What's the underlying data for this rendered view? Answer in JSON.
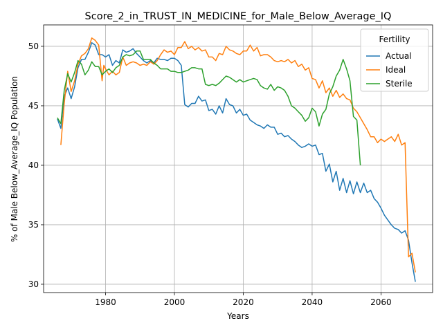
{
  "chart_data": {
    "type": "line",
    "title": "Score_2_in_TRUST_IN_MEDICINE_for_Male_Below_Average_IQ",
    "xlabel": "Years",
    "ylabel": "% of Male Below_Average_IQ Population",
    "xlim": [
      1962,
      2075
    ],
    "ylim": [
      29.3,
      51.8
    ],
    "xticks": [
      1980,
      2000,
      2020,
      2040,
      2060
    ],
    "yticks": [
      30,
      35,
      40,
      45,
      50
    ],
    "grid": true,
    "legend": {
      "title": "Fertility",
      "position": "top-right"
    },
    "series": [
      {
        "name": "Actual",
        "color": "#1f77b4",
        "points": [
          [
            1966,
            43.9
          ],
          [
            1967,
            43.1
          ],
          [
            1968,
            45.8
          ],
          [
            1969,
            46.5
          ],
          [
            1970,
            45.6
          ],
          [
            1971,
            46.6
          ],
          [
            1972,
            48.2
          ],
          [
            1973,
            48.9
          ],
          [
            1974,
            48.9
          ],
          [
            1975,
            49.5
          ],
          [
            1976,
            50.3
          ],
          [
            1977,
            50.1
          ],
          [
            1978,
            49.3
          ],
          [
            1979,
            49.3
          ],
          [
            1980,
            49.1
          ],
          [
            1981,
            49.3
          ],
          [
            1982,
            48.4
          ],
          [
            1983,
            48.8
          ],
          [
            1984,
            48.6
          ],
          [
            1985,
            49.7
          ],
          [
            1986,
            49.5
          ],
          [
            1987,
            49.6
          ],
          [
            1988,
            49.8
          ],
          [
            1989,
            49.4
          ],
          [
            1990,
            49.1
          ],
          [
            1991,
            48.8
          ],
          [
            1992,
            48.6
          ],
          [
            1993,
            48.8
          ],
          [
            1994,
            48.6
          ],
          [
            1995,
            49.0
          ],
          [
            1996,
            48.9
          ],
          [
            1997,
            48.9
          ],
          [
            1998,
            48.8
          ],
          [
            1999,
            49.0
          ],
          [
            2000,
            49.0
          ],
          [
            2001,
            48.8
          ],
          [
            2002,
            48.4
          ],
          [
            2003,
            45.1
          ],
          [
            2004,
            44.9
          ],
          [
            2005,
            45.2
          ],
          [
            2006,
            45.2
          ],
          [
            2007,
            45.8
          ],
          [
            2008,
            45.4
          ],
          [
            2009,
            45.5
          ],
          [
            2010,
            44.6
          ],
          [
            2011,
            44.7
          ],
          [
            2012,
            44.3
          ],
          [
            2013,
            45.0
          ],
          [
            2014,
            44.4
          ],
          [
            2015,
            45.6
          ],
          [
            2016,
            45.1
          ],
          [
            2017,
            45.0
          ],
          [
            2018,
            44.4
          ],
          [
            2019,
            44.7
          ],
          [
            2020,
            44.2
          ],
          [
            2021,
            44.3
          ],
          [
            2022,
            43.8
          ],
          [
            2023,
            43.6
          ],
          [
            2024,
            43.4
          ],
          [
            2025,
            43.3
          ],
          [
            2026,
            43.1
          ],
          [
            2027,
            43.4
          ],
          [
            2028,
            43.2
          ],
          [
            2029,
            43.2
          ],
          [
            2030,
            42.6
          ],
          [
            2031,
            42.7
          ],
          [
            2032,
            42.4
          ],
          [
            2033,
            42.5
          ],
          [
            2034,
            42.2
          ],
          [
            2035,
            42.0
          ],
          [
            2036,
            41.7
          ],
          [
            2037,
            41.5
          ],
          [
            2038,
            41.6
          ],
          [
            2039,
            41.8
          ],
          [
            2040,
            41.6
          ],
          [
            2041,
            41.7
          ],
          [
            2042,
            40.9
          ],
          [
            2043,
            41.0
          ],
          [
            2044,
            39.5
          ],
          [
            2045,
            40.1
          ],
          [
            2046,
            38.6
          ],
          [
            2047,
            39.5
          ],
          [
            2048,
            37.9
          ],
          [
            2049,
            38.9
          ],
          [
            2050,
            37.7
          ],
          [
            2051,
            38.7
          ],
          [
            2052,
            37.6
          ],
          [
            2053,
            38.6
          ],
          [
            2054,
            37.7
          ],
          [
            2055,
            38.5
          ],
          [
            2056,
            37.7
          ],
          [
            2057,
            37.9
          ],
          [
            2058,
            37.2
          ],
          [
            2059,
            36.9
          ],
          [
            2060,
            36.4
          ],
          [
            2061,
            35.8
          ],
          [
            2062,
            35.4
          ],
          [
            2063,
            35.0
          ],
          [
            2064,
            34.7
          ],
          [
            2065,
            34.6
          ],
          [
            2066,
            34.3
          ],
          [
            2067,
            34.5
          ],
          [
            2068,
            33.7
          ],
          [
            2069,
            31.8
          ],
          [
            2070,
            30.2
          ]
        ]
      },
      {
        "name": "Ideal",
        "color": "#ff7f0e",
        "points": [
          [
            1967,
            41.7
          ],
          [
            1968,
            45.2
          ],
          [
            1969,
            47.9
          ],
          [
            1970,
            46.2
          ],
          [
            1971,
            47.1
          ],
          [
            1972,
            48.5
          ],
          [
            1973,
            49.2
          ],
          [
            1974,
            49.4
          ],
          [
            1975,
            49.8
          ],
          [
            1976,
            50.7
          ],
          [
            1977,
            50.5
          ],
          [
            1978,
            50.1
          ],
          [
            1979,
            47.1
          ],
          [
            1979.5,
            48.4
          ],
          [
            1980,
            48.1
          ],
          [
            1981,
            47.6
          ],
          [
            1982,
            47.9
          ],
          [
            1983,
            47.6
          ],
          [
            1984,
            47.8
          ],
          [
            1985,
            49.1
          ],
          [
            1986,
            48.4
          ],
          [
            1987,
            48.6
          ],
          [
            1988,
            48.7
          ],
          [
            1989,
            48.6
          ],
          [
            1990,
            48.4
          ],
          [
            1991,
            48.5
          ],
          [
            1992,
            48.4
          ],
          [
            1993,
            48.7
          ],
          [
            1994,
            48.5
          ],
          [
            1995,
            48.8
          ],
          [
            1996,
            49.3
          ],
          [
            1997,
            49.7
          ],
          [
            1998,
            49.5
          ],
          [
            1999,
            49.6
          ],
          [
            2000,
            49.3
          ],
          [
            2001,
            49.9
          ],
          [
            2002,
            49.9
          ],
          [
            2003,
            50.4
          ],
          [
            2004,
            49.8
          ],
          [
            2005,
            50.0
          ],
          [
            2006,
            49.7
          ],
          [
            2007,
            49.9
          ],
          [
            2008,
            49.6
          ],
          [
            2009,
            49.7
          ],
          [
            2010,
            49.1
          ],
          [
            2011,
            49.1
          ],
          [
            2012,
            48.8
          ],
          [
            2013,
            49.4
          ],
          [
            2014,
            49.3
          ],
          [
            2015,
            50.0
          ],
          [
            2016,
            49.7
          ],
          [
            2017,
            49.6
          ],
          [
            2018,
            49.4
          ],
          [
            2019,
            49.3
          ],
          [
            2020,
            49.6
          ],
          [
            2021,
            49.6
          ],
          [
            2022,
            50.1
          ],
          [
            2023,
            49.6
          ],
          [
            2024,
            49.9
          ],
          [
            2025,
            49.2
          ],
          [
            2026,
            49.3
          ],
          [
            2027,
            49.3
          ],
          [
            2028,
            49.1
          ],
          [
            2029,
            48.8
          ],
          [
            2030,
            48.7
          ],
          [
            2031,
            48.8
          ],
          [
            2032,
            48.7
          ],
          [
            2033,
            48.9
          ],
          [
            2034,
            48.6
          ],
          [
            2035,
            48.8
          ],
          [
            2036,
            48.3
          ],
          [
            2037,
            48.5
          ],
          [
            2038,
            48.0
          ],
          [
            2039,
            48.2
          ],
          [
            2040,
            47.3
          ],
          [
            2041,
            47.2
          ],
          [
            2042,
            46.5
          ],
          [
            2043,
            47.1
          ],
          [
            2044,
            46.1
          ],
          [
            2045,
            46.5
          ],
          [
            2046,
            45.8
          ],
          [
            2047,
            46.3
          ],
          [
            2048,
            45.7
          ],
          [
            2049,
            46.0
          ],
          [
            2050,
            45.6
          ],
          [
            2051,
            45.5
          ],
          [
            2052,
            44.8
          ],
          [
            2053,
            44.5
          ],
          [
            2054,
            44.0
          ],
          [
            2055,
            43.5
          ],
          [
            2056,
            43.0
          ],
          [
            2057,
            42.4
          ],
          [
            2058,
            42.4
          ],
          [
            2059,
            41.9
          ],
          [
            2060,
            42.2
          ],
          [
            2061,
            42.0
          ],
          [
            2062,
            42.2
          ],
          [
            2063,
            42.4
          ],
          [
            2064,
            42.0
          ],
          [
            2065,
            42.6
          ],
          [
            2066,
            41.7
          ],
          [
            2067,
            41.9
          ],
          [
            2068,
            32.3
          ],
          [
            2069,
            32.6
          ],
          [
            2070,
            31.0
          ]
        ]
      },
      {
        "name": "Sterile",
        "color": "#2ca02c",
        "points": [
          [
            1966,
            44.0
          ],
          [
            1967,
            43.5
          ],
          [
            1968,
            46.3
          ],
          [
            1969,
            47.7
          ],
          [
            1970,
            47.0
          ],
          [
            1971,
            47.8
          ],
          [
            1972,
            48.8
          ],
          [
            1973,
            48.5
          ],
          [
            1974,
            47.6
          ],
          [
            1975,
            48.0
          ],
          [
            1976,
            48.7
          ],
          [
            1977,
            48.3
          ],
          [
            1978,
            48.3
          ],
          [
            1979,
            47.6
          ],
          [
            1980,
            47.9
          ],
          [
            1981,
            48.1
          ],
          [
            1982,
            47.8
          ],
          [
            1983,
            48.2
          ],
          [
            1984,
            48.4
          ],
          [
            1985,
            49.1
          ],
          [
            1986,
            49.3
          ],
          [
            1987,
            49.2
          ],
          [
            1988,
            49.3
          ],
          [
            1989,
            49.6
          ],
          [
            1990,
            49.6
          ],
          [
            1991,
            48.9
          ],
          [
            1992,
            48.9
          ],
          [
            1993,
            48.9
          ],
          [
            1994,
            48.6
          ],
          [
            1995,
            48.4
          ],
          [
            1996,
            48.1
          ],
          [
            1997,
            48.1
          ],
          [
            1998,
            48.1
          ],
          [
            1999,
            47.9
          ],
          [
            2000,
            47.9
          ],
          [
            2001,
            47.8
          ],
          [
            2002,
            47.8
          ],
          [
            2003,
            47.9
          ],
          [
            2004,
            48.0
          ],
          [
            2005,
            48.2
          ],
          [
            2006,
            48.2
          ],
          [
            2007,
            48.1
          ],
          [
            2008,
            48.1
          ],
          [
            2009,
            46.8
          ],
          [
            2010,
            46.7
          ],
          [
            2011,
            46.8
          ],
          [
            2012,
            46.7
          ],
          [
            2013,
            46.9
          ],
          [
            2014,
            47.2
          ],
          [
            2015,
            47.5
          ],
          [
            2016,
            47.4
          ],
          [
            2017,
            47.2
          ],
          [
            2018,
            47.0
          ],
          [
            2019,
            47.2
          ],
          [
            2020,
            47.0
          ],
          [
            2021,
            47.1
          ],
          [
            2022,
            47.2
          ],
          [
            2023,
            47.3
          ],
          [
            2024,
            47.2
          ],
          [
            2025,
            46.7
          ],
          [
            2026,
            46.5
          ],
          [
            2027,
            46.4
          ],
          [
            2028,
            46.8
          ],
          [
            2029,
            46.3
          ],
          [
            2030,
            46.6
          ],
          [
            2031,
            46.5
          ],
          [
            2032,
            46.3
          ],
          [
            2033,
            45.8
          ],
          [
            2034,
            45.0
          ],
          [
            2035,
            44.8
          ],
          [
            2036,
            44.5
          ],
          [
            2037,
            44.2
          ],
          [
            2038,
            43.7
          ],
          [
            2039,
            44.0
          ],
          [
            2040,
            44.8
          ],
          [
            2041,
            44.5
          ],
          [
            2042,
            43.3
          ],
          [
            2043,
            44.3
          ],
          [
            2044,
            44.7
          ],
          [
            2045,
            46.0
          ],
          [
            2046,
            46.6
          ],
          [
            2047,
            47.5
          ],
          [
            2048,
            48.0
          ],
          [
            2049,
            48.9
          ],
          [
            2050,
            48.1
          ],
          [
            2051,
            47.1
          ],
          [
            2052,
            44.1
          ],
          [
            2053,
            43.8
          ],
          [
            2054,
            40.0
          ]
        ]
      }
    ]
  }
}
